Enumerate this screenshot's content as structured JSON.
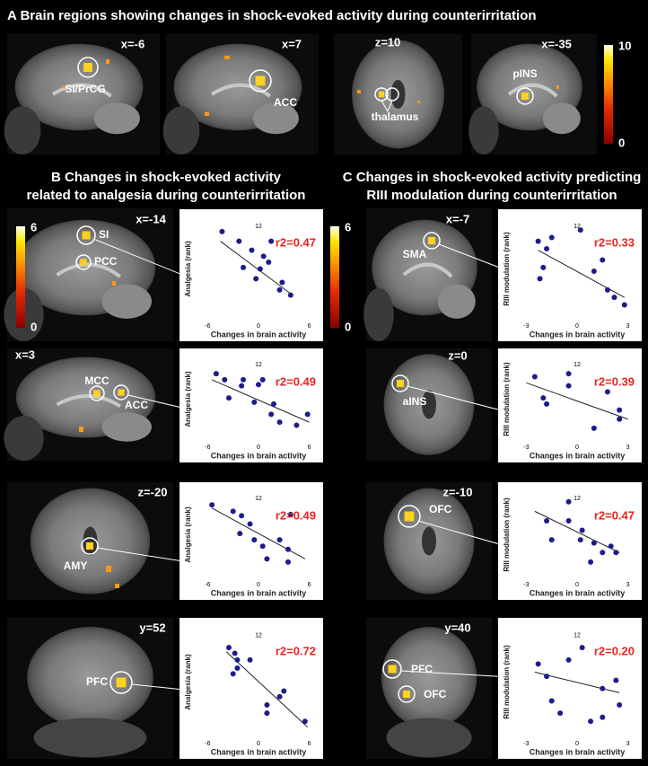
{
  "panel_a": {
    "title": "A  Brain regions showing changes in shock-evoked activity during counterirritation",
    "colorbar": [
      10,
      0
    ],
    "images": [
      {
        "coord": "x=-6",
        "labels": [
          "SI/PrCG"
        ]
      },
      {
        "coord": "x=7",
        "labels": [
          "ACC"
        ]
      },
      {
        "coord": "z=10",
        "labels": [
          "thalamus"
        ]
      },
      {
        "coord": "x=-35",
        "labels": [
          "pINS"
        ]
      }
    ]
  },
  "panel_b": {
    "title": [
      "B  Changes in shock-evoked activity",
      "related to analgesia during  counterirritation"
    ],
    "colorbar": [
      6,
      0
    ],
    "images": [
      {
        "coord": "x=-14",
        "labels": [
          "SI",
          "PCC"
        ]
      },
      {
        "coord": "x=3",
        "labels": [
          "MCC",
          "ACC"
        ]
      },
      {
        "coord": "z=-20",
        "labels": [
          "AMY"
        ]
      },
      {
        "coord": "y=52",
        "labels": [
          "PFC"
        ]
      }
    ]
  },
  "panel_c": {
    "title": [
      "C  Changes in shock-evoked activity predicting",
      "RIII modulation during counterirritation"
    ],
    "colorbar": [
      6,
      0
    ],
    "images": [
      {
        "coord": "x=-7",
        "labels": [
          "SMA"
        ]
      },
      {
        "coord": "z=0",
        "labels": [
          "aINS"
        ]
      },
      {
        "coord": "z=-10",
        "labels": [
          "OFC"
        ]
      },
      {
        "coord": "y=40",
        "labels": [
          "PFC",
          "OFC"
        ]
      }
    ]
  },
  "chart_data": [
    {
      "type": "scatter",
      "x_label": "Changes in brain activity",
      "y_label": "Analgesia (rank)",
      "annotation": "r2=0.47",
      "color": "#1c1c8a",
      "annotation_color": "#e52521",
      "x": [
        -4.3,
        -2.3,
        -1.8,
        -0.8,
        -0.3,
        0.2,
        0.6,
        1.2,
        1.5,
        2.5,
        2.8,
        3.8
      ],
      "values": [
        11.3,
        10,
        6.5,
        8.8,
        5,
        6.3,
        8,
        7.2,
        10,
        3.5,
        4.5,
        2.8
      ],
      "xlim": [
        -7,
        7
      ],
      "ylim": [
        0,
        12.6
      ],
      "xticks": [
        -6,
        0,
        6
      ],
      "yticks": [
        12
      ],
      "fit_line": {
        "x": [
          -4.5,
          3.8
        ],
        "y": [
          10,
          3
        ]
      }
    },
    {
      "type": "scatter",
      "x_label": "Changes in brain activity",
      "y_label": "Analgesia (rank)",
      "annotation": "r2=0.49",
      "color": "#1c1c8a",
      "annotation_color": "#e52521",
      "x": [
        -5,
        -4,
        -3.5,
        -2,
        -1.8,
        -0.5,
        0,
        0.5,
        1.5,
        1.8,
        2.5,
        4.5,
        5.8
      ],
      "values": [
        10.5,
        9.5,
        6.5,
        8.5,
        9.5,
        5.8,
        8.7,
        9.5,
        3.8,
        5.5,
        2.5,
        2,
        3.8
      ],
      "xlim": [
        -7,
        7
      ],
      "ylim": [
        0,
        12.6
      ],
      "xticks": [
        -6,
        0,
        6
      ],
      "yticks": [
        12
      ],
      "fit_line": {
        "x": [
          -5.5,
          6
        ],
        "y": [
          9.5,
          2.5
        ]
      }
    },
    {
      "type": "scatter",
      "x_label": "Changes in brain activity",
      "y_label": "Analgesia (rank)",
      "annotation": "r2=0.49",
      "color": "#1c1c8a",
      "annotation_color": "#e52521",
      "x": [
        -5.5,
        -3,
        -2,
        -2.2,
        -1,
        -0.5,
        0.5,
        1,
        2.5,
        3.5,
        3.8,
        3.5
      ],
      "values": [
        11,
        10,
        9.3,
        6.5,
        8,
        5.5,
        4.5,
        2.5,
        5.5,
        4,
        9.5,
        2
      ],
      "xlim": [
        -7,
        7
      ],
      "ylim": [
        0,
        12.6
      ],
      "xticks": [
        -6,
        0,
        6
      ],
      "yticks": [
        12
      ],
      "fit_line": {
        "x": [
          -5.5,
          5.5
        ],
        "y": [
          10.5,
          2.5
        ]
      }
    },
    {
      "type": "scatter",
      "x_label": "Changes in brain activity",
      "y_label": "Analgesia (rank)",
      "annotation": "r2=0.72",
      "color": "#1c1c8a",
      "annotation_color": "#e52521",
      "x": [
        -3.5,
        -2.8,
        -2.5,
        -2.5,
        -3,
        -1,
        1,
        1,
        2.5,
        3,
        5.5
      ],
      "values": [
        10.5,
        9.8,
        9,
        8,
        7.3,
        9,
        2.5,
        3.5,
        4.5,
        5.2,
        1.5
      ],
      "xlim": [
        -7,
        7
      ],
      "ylim": [
        0,
        12.6
      ],
      "xticks": [
        -6,
        0,
        6
      ],
      "yticks": [
        12
      ],
      "fit_line": {
        "x": [
          -3.8,
          5.8
        ],
        "y": [
          10,
          0.8
        ]
      }
    },
    {
      "type": "scatter",
      "x_label": "Changes in brain activity",
      "y_label": "RIII modulation (rank)",
      "annotation": "r2=0.33",
      "color": "#1c1c8a",
      "annotation_color": "#e52521",
      "x": [
        -2.3,
        -1.8,
        -2,
        -2.2,
        -1.5,
        0.2,
        1,
        1.5,
        1.8,
        2.2,
        2.8
      ],
      "values": [
        10,
        9,
        6.5,
        5,
        10.5,
        11.5,
        6,
        7.5,
        3.5,
        2.5,
        1.5
      ],
      "xlim": [
        -3.5,
        3.5
      ],
      "ylim": [
        0,
        12.6
      ],
      "xticks": [
        -3,
        0,
        3
      ],
      "yticks": [
        12
      ],
      "fit_line": {
        "x": [
          -2.3,
          2.8
        ],
        "y": [
          8.8,
          2.5
        ]
      }
    },
    {
      "type": "scatter",
      "x_label": "Changes in brain activity",
      "y_label": "RIII modulation (rank)",
      "annotation": "r2=0.39",
      "color": "#1c1c8a",
      "annotation_color": "#e52521",
      "x": [
        -2.5,
        -2,
        -1.8,
        -0.5,
        -0.5,
        1,
        1.8,
        2.5,
        2.5
      ],
      "values": [
        10,
        6.5,
        5.5,
        10.5,
        8.5,
        1.5,
        7.5,
        4.5,
        3
      ],
      "xlim": [
        -3.5,
        3.5
      ],
      "ylim": [
        0,
        12.6
      ],
      "xticks": [
        -3,
        0,
        3
      ],
      "yticks": [
        12
      ],
      "fit_line": {
        "x": [
          -3,
          3
        ],
        "y": [
          9,
          3
        ]
      }
    },
    {
      "type": "scatter",
      "x_label": "Changes in brain activity",
      "y_label": "RIII modulation (rank)",
      "annotation": "r2=0.47",
      "color": "#1c1c8a",
      "annotation_color": "#e52521",
      "x": [
        -1.8,
        -1.5,
        -0.5,
        -0.5,
        0.2,
        0.3,
        0.8,
        1,
        1.5,
        2,
        2.3
      ],
      "values": [
        8.5,
        5.5,
        11.5,
        8.5,
        5.5,
        7,
        2,
        5,
        3.5,
        4.5,
        3.5
      ],
      "xlim": [
        -3.5,
        3.5
      ],
      "ylim": [
        0,
        12.6
      ],
      "xticks": [
        -3,
        0,
        3
      ],
      "yticks": [
        12
      ],
      "fit_line": {
        "x": [
          -2.5,
          2.5
        ],
        "y": [
          10,
          3.5
        ]
      }
    },
    {
      "type": "scatter",
      "x_label": "Changes in brain activity",
      "y_label": "RIII modulation (rank)",
      "annotation": "r2=0.20",
      "color": "#1c1c8a",
      "annotation_color": "#e52521",
      "x": [
        -2.3,
        -1.8,
        -1.5,
        -1,
        -0.5,
        0.3,
        0.8,
        1.5,
        1.5,
        2.3,
        2.5
      ],
      "values": [
        8.5,
        7,
        4,
        2.5,
        9,
        10.5,
        1.5,
        5.5,
        2,
        6.5,
        3.5
      ],
      "xlim": [
        -3.5,
        3.5
      ],
      "ylim": [
        0,
        12.6
      ],
      "xticks": [
        -3,
        0,
        3
      ],
      "yticks": [
        12
      ],
      "fit_line": {
        "x": [
          -2.5,
          2.5
        ],
        "y": [
          7.5,
          5
        ]
      }
    }
  ]
}
